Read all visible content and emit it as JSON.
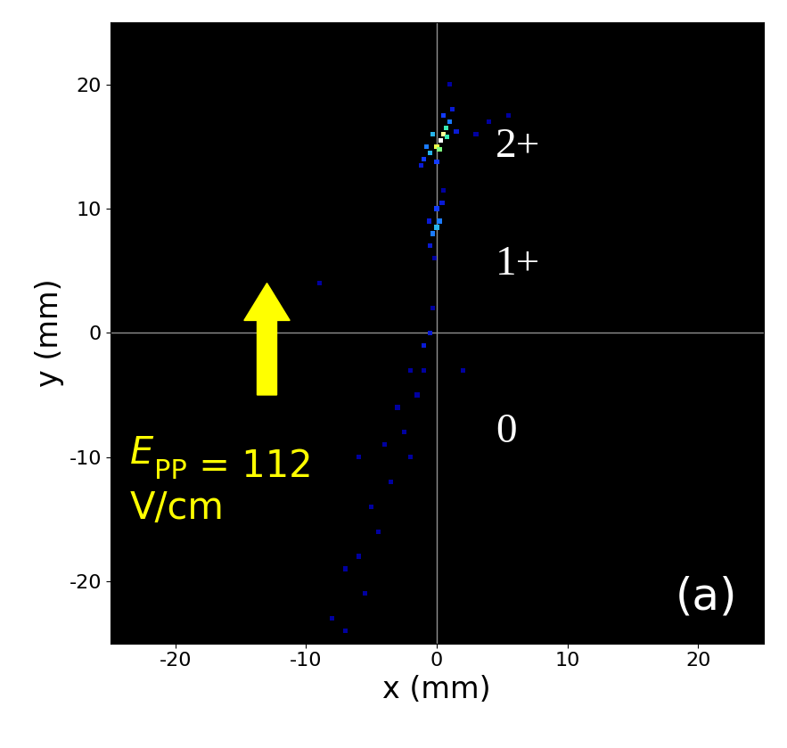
{
  "chart_data": {
    "type": "scatter",
    "x_label": "x (mm)",
    "y_label": "y (mm)",
    "xlim": [
      -25,
      25
    ],
    "ylim": [
      -25,
      25
    ],
    "xticks": [
      -20,
      -10,
      0,
      10,
      20
    ],
    "yticks": [
      -20,
      -10,
      0,
      10,
      20
    ],
    "grid": false,
    "x": [
      -1,
      -0.5,
      0,
      0.3,
      0.5,
      0.7,
      1,
      -0.8,
      0.2,
      0.8,
      -0.3,
      1.2,
      -1.2,
      0,
      1.5,
      0.5,
      4,
      5.5,
      3,
      1,
      -0.5,
      -0.3,
      0,
      0.2,
      0,
      0.4,
      -0.6,
      0.5,
      -0.2,
      -0.5,
      -1,
      -0.3,
      -2,
      -1.5,
      -3,
      -2.5,
      -4,
      -3.5,
      -5,
      -4.5,
      -6,
      -7,
      -5.5,
      -8,
      -7,
      -9,
      -1,
      2,
      -2,
      -6
    ],
    "y": [
      14,
      14.5,
      15,
      15.5,
      16,
      16.5,
      17,
      15,
      14.8,
      15.8,
      16,
      18,
      13.5,
      13.8,
      16.2,
      17.5,
      17,
      17.5,
      16,
      20,
      7,
      8,
      8.5,
      9,
      10,
      10.5,
      9,
      11.5,
      6,
      0,
      -1,
      2,
      -3,
      -5,
      -6,
      -8,
      -9,
      -12,
      -14,
      -16,
      -18,
      -19,
      -21,
      -23,
      -24,
      4,
      -3,
      -3,
      -10,
      -10
    ],
    "counts": [
      3,
      5,
      8,
      10,
      9,
      6,
      4,
      4,
      7,
      6,
      5,
      2,
      2,
      3,
      2,
      3,
      1,
      1,
      1,
      1,
      2,
      4,
      5,
      4,
      3,
      2,
      2,
      1,
      1,
      2,
      2,
      1,
      1,
      1,
      1,
      1,
      1,
      1,
      1,
      1,
      1,
      1,
      1,
      1,
      1,
      1,
      1,
      1,
      1,
      1
    ],
    "annotations": [
      {
        "text": "2+",
        "x": 4.5,
        "y": 15
      },
      {
        "text": "1+",
        "x": 4.5,
        "y": 5.5
      },
      {
        "text": "0",
        "x": 4.5,
        "y": -8
      }
    ],
    "field_label": {
      "symbol": "E",
      "subscript": "PP",
      "rest": " = 112",
      "unit": "V/cm"
    },
    "panel_label": "(a)"
  }
}
